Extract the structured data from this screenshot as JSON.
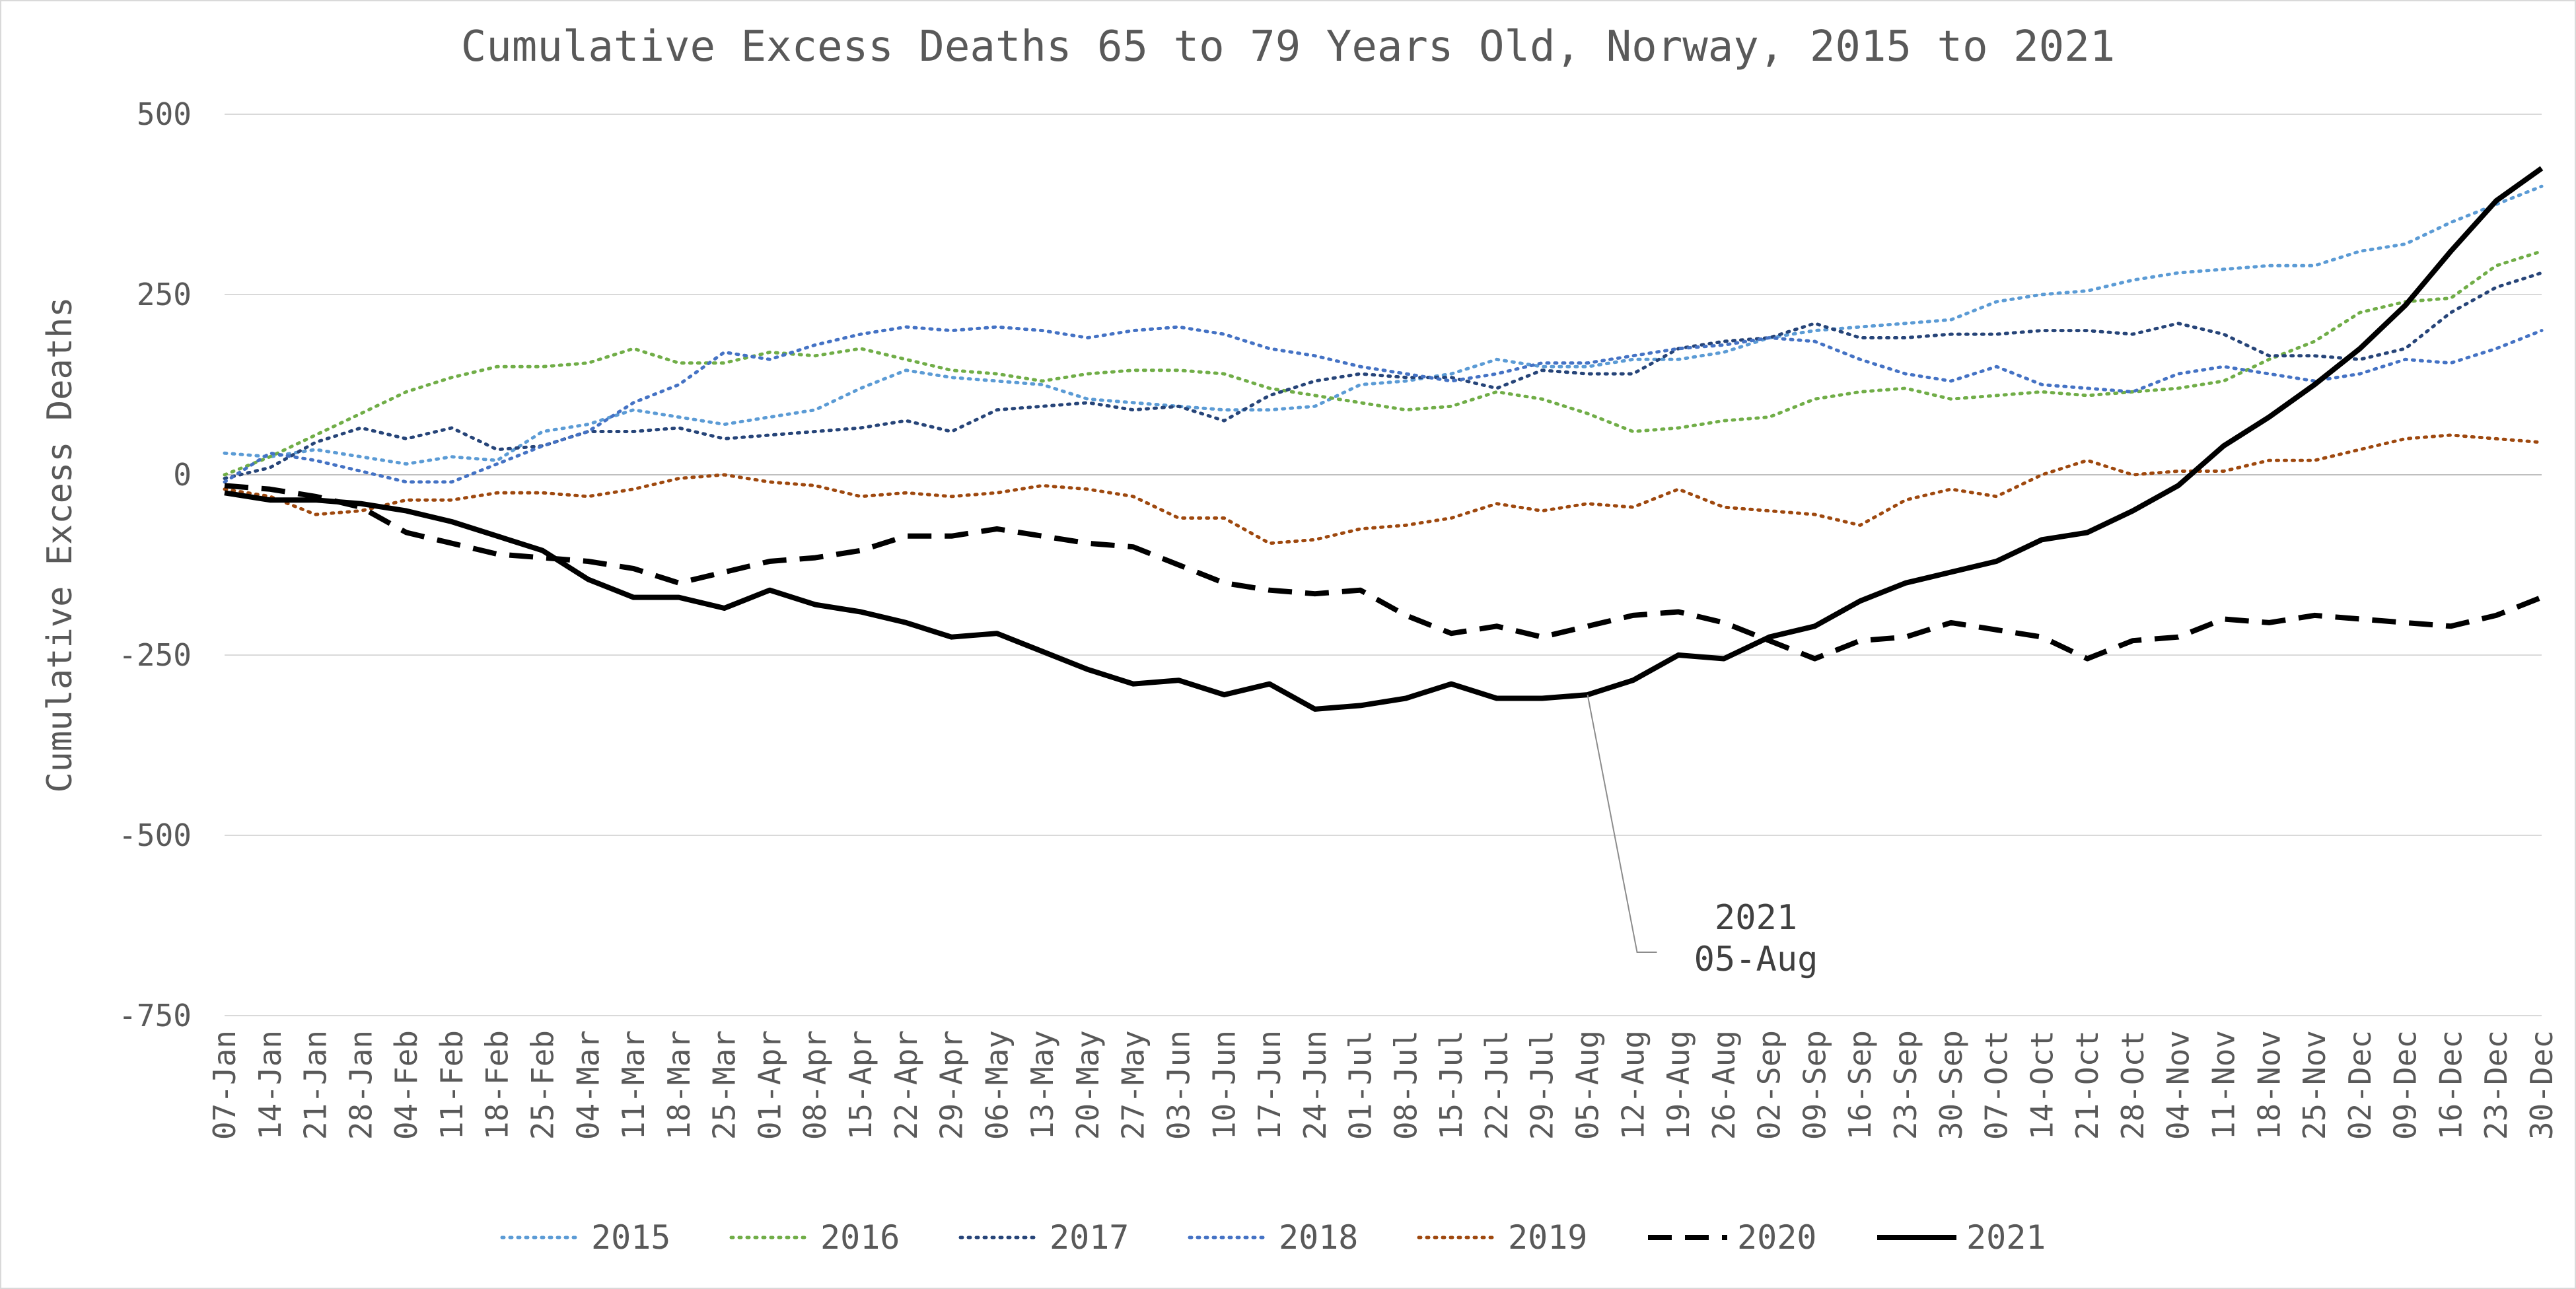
{
  "chart_data": {
    "type": "line",
    "title": "Cumulative Excess Deaths 65 to 79 Years Old, Norway, 2015 to 2021",
    "xlabel": "",
    "ylabel": "Cumulative Excess Deaths",
    "ylim": [
      -750,
      500
    ],
    "yticks": [
      500,
      250,
      0,
      -250,
      -500,
      -750
    ],
    "ytick_labels": [
      "500",
      "250",
      "0",
      "-250",
      "-500",
      "-750"
    ],
    "grid": "horizontal",
    "legend_position": "bottom",
    "categories": [
      "07-Jan",
      "14-Jan",
      "21-Jan",
      "28-Jan",
      "04-Feb",
      "11-Feb",
      "18-Feb",
      "25-Feb",
      "04-Mar",
      "11-Mar",
      "18-Mar",
      "25-Mar",
      "01-Apr",
      "08-Apr",
      "15-Apr",
      "22-Apr",
      "29-Apr",
      "06-May",
      "13-May",
      "20-May",
      "27-May",
      "03-Jun",
      "10-Jun",
      "17-Jun",
      "24-Jun",
      "01-Jul",
      "08-Jul",
      "15-Jul",
      "22-Jul",
      "29-Jul",
      "05-Aug",
      "12-Aug",
      "19-Aug",
      "26-Aug",
      "02-Sep",
      "09-Sep",
      "16-Sep",
      "23-Sep",
      "30-Sep",
      "07-Oct",
      "14-Oct",
      "21-Oct",
      "28-Oct",
      "04-Nov",
      "11-Nov",
      "18-Nov",
      "25-Nov",
      "02-Dec",
      "09-Dec",
      "16-Dec",
      "23-Dec",
      "30-Dec"
    ],
    "series": [
      {
        "name": "2015",
        "color": "#5b9bd5",
        "dash": "dotted",
        "values": [
          30,
          25,
          35,
          25,
          15,
          25,
          20,
          60,
          70,
          90,
          80,
          70,
          80,
          90,
          120,
          145,
          135,
          130,
          125,
          105,
          100,
          95,
          90,
          90,
          95,
          125,
          130,
          140,
          160,
          150,
          150,
          160,
          160,
          170,
          190,
          200,
          205,
          210,
          215,
          240,
          250,
          255,
          270,
          280,
          285,
          290,
          290,
          310,
          320,
          350,
          375,
          400
        ]
      },
      {
        "name": "2016",
        "color": "#70ad47",
        "dash": "dotted",
        "values": [
          0,
          25,
          55,
          85,
          115,
          135,
          150,
          150,
          155,
          175,
          155,
          155,
          170,
          165,
          175,
          160,
          145,
          140,
          130,
          140,
          145,
          145,
          140,
          120,
          110,
          100,
          90,
          95,
          115,
          105,
          85,
          60,
          65,
          75,
          80,
          105,
          115,
          120,
          105,
          110,
          115,
          110,
          115,
          120,
          130,
          160,
          185,
          225,
          240,
          245,
          290,
          310
        ]
      },
      {
        "name": "2017",
        "color": "#264478",
        "dash": "dotted",
        "values": [
          -5,
          10,
          45,
          65,
          50,
          65,
          35,
          40,
          60,
          60,
          65,
          50,
          55,
          60,
          65,
          75,
          60,
          90,
          95,
          100,
          90,
          95,
          75,
          110,
          130,
          140,
          135,
          135,
          120,
          145,
          140,
          140,
          175,
          185,
          190,
          210,
          190,
          190,
          195,
          195,
          200,
          200,
          195,
          210,
          195,
          165,
          165,
          160,
          175,
          225,
          260,
          280
        ]
      },
      {
        "name": "2018",
        "color": "#4472c4",
        "dash": "dotted",
        "values": [
          -10,
          30,
          20,
          5,
          -10,
          -10,
          15,
          40,
          60,
          100,
          125,
          170,
          160,
          180,
          195,
          205,
          200,
          205,
          200,
          190,
          200,
          205,
          195,
          175,
          165,
          150,
          140,
          130,
          140,
          155,
          155,
          165,
          175,
          180,
          190,
          185,
          160,
          140,
          130,
          150,
          125,
          120,
          115,
          140,
          150,
          140,
          130,
          140,
          160,
          155,
          175,
          200
        ]
      },
      {
        "name": "2019",
        "color": "#9e480e",
        "dash": "dotted",
        "values": [
          -20,
          -30,
          -55,
          -50,
          -35,
          -35,
          -25,
          -25,
          -30,
          -20,
          -5,
          0,
          -10,
          -15,
          -30,
          -25,
          -30,
          -25,
          -15,
          -20,
          -30,
          -60,
          -60,
          -95,
          -90,
          -75,
          -70,
          -60,
          -40,
          -50,
          -40,
          -45,
          -20,
          -45,
          -50,
          -55,
          -70,
          -35,
          -20,
          -30,
          0,
          20,
          0,
          5,
          5,
          20,
          20,
          35,
          50,
          55,
          50,
          45
        ]
      },
      {
        "name": "2020",
        "color": "#000000",
        "dash": "dashed",
        "values": [
          -15,
          -20,
          -30,
          -45,
          -80,
          -95,
          -110,
          -115,
          -120,
          -130,
          -150,
          -135,
          -120,
          -115,
          -105,
          -85,
          -85,
          -75,
          -85,
          -95,
          -100,
          -125,
          -150,
          -160,
          -165,
          -160,
          -195,
          -220,
          -210,
          -225,
          -210,
          -195,
          -190,
          -205,
          -230,
          -255,
          -230,
          -225,
          -205,
          -215,
          -225,
          -255,
          -230,
          -225,
          -200,
          -205,
          -195,
          -200,
          -205,
          -210,
          -195,
          -170
        ]
      },
      {
        "name": "2021",
        "color": "#000000",
        "dash": "solid",
        "values": [
          -25,
          -35,
          -35,
          -40,
          -50,
          -65,
          -85,
          -105,
          -145,
          -170,
          -170,
          -185,
          -160,
          -180,
          -190,
          -205,
          -225,
          -220,
          -245,
          -270,
          -290,
          -285,
          -305,
          -290,
          -325,
          -320,
          -310,
          -290,
          -310,
          -310,
          -305,
          -285,
          -250,
          -255,
          -225,
          -210,
          -175,
          -150,
          -135,
          -120,
          -90,
          -80,
          -50,
          -15,
          40,
          80,
          125,
          175,
          235,
          310,
          380,
          425
        ]
      }
    ],
    "annotations": [
      {
        "series": "2021",
        "category": "05-Aug",
        "line1": "2021",
        "line2": "05-Aug"
      }
    ]
  }
}
